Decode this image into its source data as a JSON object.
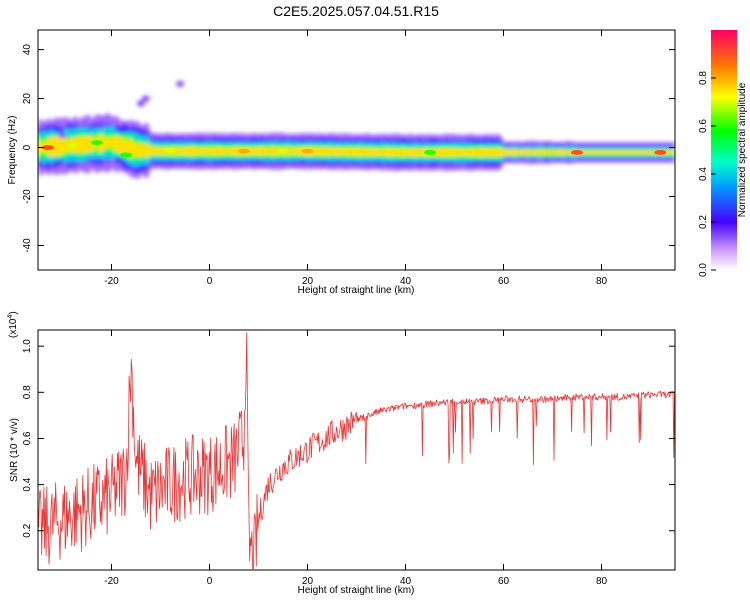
{
  "title": "C2E5.2025.057.04.51.R15",
  "chart_data": [
    {
      "type": "heatmap",
      "xlabel": "Height of straight line (km)",
      "ylabel": "Frequency (Hz)",
      "xlim": [
        -35,
        95
      ],
      "ylim": [
        -50,
        48
      ],
      "xticks": [
        -20,
        0,
        20,
        40,
        60,
        80
      ],
      "yticks": [
        -40,
        -20,
        0,
        20,
        40
      ],
      "colorbar": {
        "label": "Normalized spectral amplitude",
        "range": [
          0,
          1
        ],
        "ticks": [
          "0.0",
          "0.2",
          "0.4",
          "0.6",
          "0.8"
        ]
      },
      "band_center_hz": [
        [
          -35,
          0
        ],
        [
          -20,
          2
        ],
        [
          -15,
          -1
        ],
        [
          -10,
          -1.5
        ],
        [
          0,
          -1.5
        ],
        [
          20,
          -1.5
        ],
        [
          40,
          -2
        ],
        [
          60,
          -2
        ],
        [
          80,
          -2
        ],
        [
          95,
          -2
        ]
      ],
      "hot_spots": [
        {
          "x": -33,
          "y": 0,
          "amp": 0.9
        },
        {
          "x": -28,
          "y": 1,
          "amp": 0.7
        },
        {
          "x": -23,
          "y": 2,
          "amp": 0.6
        },
        {
          "x": -17,
          "y": -3,
          "amp": 0.6
        },
        {
          "x": -8,
          "y": -1,
          "amp": 0.7
        },
        {
          "x": 7,
          "y": -1.5,
          "amp": 0.8
        },
        {
          "x": 15,
          "y": -1.5,
          "amp": 0.7
        },
        {
          "x": 20,
          "y": -1.5,
          "amp": 0.8
        },
        {
          "x": 45,
          "y": -2,
          "amp": 0.6
        },
        {
          "x": 75,
          "y": -2,
          "amp": 0.9
        },
        {
          "x": 92,
          "y": -2,
          "amp": 0.9
        }
      ]
    },
    {
      "type": "line",
      "xlabel": "Height of straight line (km)",
      "ylabel": "SNR (10 * v/v)",
      "scale_label": "(x10",
      "scale_exponent": "4",
      "xlim": [
        -35,
        95
      ],
      "ylim": [
        0.03,
        1.07
      ],
      "xticks": [
        -20,
        0,
        20,
        40,
        60,
        80
      ],
      "yticks": [
        0.2,
        0.4,
        0.6,
        0.8,
        1.0
      ],
      "line_color": "#ee3333",
      "series": [
        {
          "x": [
            -35,
            -30,
            -25,
            -20,
            -17,
            -16,
            -15,
            -12,
            -10,
            -5,
            0,
            5,
            7,
            7.5,
            8,
            9,
            10,
            12,
            15,
            20,
            25,
            30,
            35,
            40,
            45,
            50,
            55,
            60,
            65,
            70,
            75,
            80,
            85,
            90,
            95
          ],
          "y": [
            0.2,
            0.25,
            0.3,
            0.35,
            0.45,
            0.93,
            0.5,
            0.35,
            0.38,
            0.43,
            0.45,
            0.5,
            0.6,
            1.07,
            0.15,
            0.05,
            0.25,
            0.4,
            0.48,
            0.55,
            0.62,
            0.68,
            0.72,
            0.74,
            0.75,
            0.76,
            0.76,
            0.77,
            0.77,
            0.77,
            0.78,
            0.78,
            0.78,
            0.79,
            0.79
          ]
        }
      ]
    }
  ]
}
